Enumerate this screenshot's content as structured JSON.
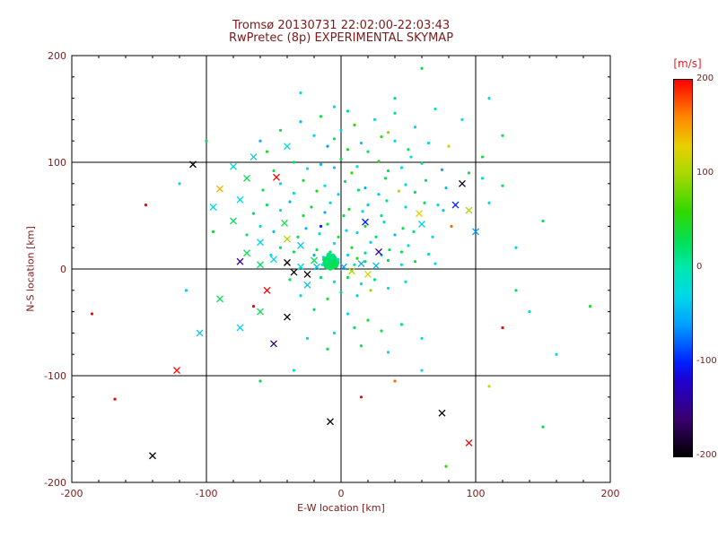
{
  "figure": {
    "background": "#ffffff",
    "text_color": "#7a1a1a",
    "axis_color": "#000000",
    "unit_label_color": "#e32222"
  },
  "chart_data": {
    "type": "scatter",
    "title_line1": "Tromsø 20130731 22:02:00-22:03:43",
    "title_line2": "RwPretec (8p) EXPERIMENTAL SKYMAP",
    "xlabel": "E-W location [km]",
    "ylabel": "N-S location [km]",
    "xlim": [
      -200,
      200
    ],
    "ylim": [
      -200,
      200
    ],
    "x_ticks": [
      -200,
      -100,
      0,
      100,
      200
    ],
    "y_ticks": [
      -200,
      -100,
      0,
      100,
      200
    ],
    "grid_values": [
      -100,
      0,
      100
    ],
    "grid": true,
    "colorbar": {
      "unit_label": "[m/s]",
      "ticks": [
        200,
        100,
        0,
        -100,
        -200
      ],
      "min": -200,
      "max": 200
    },
    "colormap_stops": [
      {
        "v": -200,
        "c": "#000000"
      },
      {
        "v": -160,
        "c": "#3a006f"
      },
      {
        "v": -120,
        "c": "#2000d0"
      },
      {
        "v": -100,
        "c": "#0020ff"
      },
      {
        "v": -60,
        "c": "#00a0ff"
      },
      {
        "v": -30,
        "c": "#00d8e8"
      },
      {
        "v": 0,
        "c": "#00e8b0"
      },
      {
        "v": 25,
        "c": "#00e060"
      },
      {
        "v": 60,
        "c": "#30d800"
      },
      {
        "v": 100,
        "c": "#a8d800"
      },
      {
        "v": 130,
        "c": "#e8d000"
      },
      {
        "v": 160,
        "c": "#ff8800"
      },
      {
        "v": 200,
        "c": "#ff0000"
      }
    ],
    "points": [
      [
        -10,
        6,
        20,
        2
      ],
      [
        -8,
        5,
        28,
        2
      ],
      [
        -6,
        7,
        15,
        2
      ],
      [
        -9,
        3,
        32,
        2
      ],
      [
        -7,
        9,
        12,
        2
      ],
      [
        -11,
        8,
        22,
        2
      ],
      [
        -5,
        4,
        18,
        2
      ],
      [
        -8,
        11,
        26,
        2
      ],
      [
        -12,
        5,
        14,
        2
      ],
      [
        -6,
        2,
        34,
        2
      ],
      [
        -4,
        8,
        20,
        2
      ],
      [
        -10,
        10,
        16,
        2
      ],
      [
        -7,
        6,
        24,
        2
      ],
      [
        -9,
        8,
        30,
        2
      ],
      [
        -5,
        10,
        14,
        2
      ],
      [
        -11,
        3,
        26,
        2
      ],
      [
        -3,
        6,
        20,
        2
      ],
      [
        -8,
        1,
        32,
        2
      ],
      [
        -6,
        12,
        18,
        2
      ],
      [
        -12,
        9,
        22,
        2
      ],
      [
        -4,
        3,
        28,
        2
      ],
      [
        -9,
        13,
        15,
        2
      ],
      [
        -7,
        4,
        40,
        2
      ],
      [
        -10,
        2,
        20,
        2
      ],
      [
        -5,
        7,
        25,
        2
      ],
      [
        -8,
        7,
        22,
        2
      ],
      [
        -9,
        5,
        18,
        2
      ],
      [
        -6,
        5,
        30,
        2
      ],
      [
        -7,
        11,
        16,
        2
      ],
      [
        -11,
        6,
        24,
        2
      ],
      [
        60,
        188,
        30,
        0
      ],
      [
        -30,
        165,
        -25,
        0
      ],
      [
        40,
        160,
        20,
        0
      ],
      [
        110,
        160,
        -30,
        0
      ],
      [
        -5,
        152,
        -30,
        0
      ],
      [
        5,
        148,
        20,
        0
      ],
      [
        -15,
        143,
        40,
        0
      ],
      [
        25,
        140,
        -20,
        0
      ],
      [
        40,
        146,
        15,
        0
      ],
      [
        -30,
        138,
        -45,
        0
      ],
      [
        10,
        135,
        60,
        0
      ],
      [
        55,
        133,
        -25,
        0
      ],
      [
        -45,
        130,
        30,
        0
      ],
      [
        70,
        150,
        -15,
        0
      ],
      [
        35,
        128,
        90,
        0
      ],
      [
        0,
        130,
        -35,
        0
      ],
      [
        90,
        140,
        -25,
        0
      ],
      [
        120,
        125,
        30,
        0
      ],
      [
        -20,
        125,
        -30,
        0
      ],
      [
        -5,
        122,
        25,
        0
      ],
      [
        15,
        118,
        -40,
        0
      ],
      [
        30,
        124,
        50,
        0
      ],
      [
        -40,
        115,
        -20,
        1
      ],
      [
        50,
        112,
        30,
        0
      ],
      [
        -60,
        120,
        -50,
        0
      ],
      [
        65,
        118,
        -30,
        0
      ],
      [
        5,
        112,
        45,
        0
      ],
      [
        -10,
        115,
        -60,
        0
      ],
      [
        20,
        110,
        20,
        0
      ],
      [
        80,
        115,
        120,
        0
      ],
      [
        -55,
        110,
        40,
        0
      ],
      [
        40,
        120,
        -25,
        0
      ],
      [
        -100,
        120,
        25,
        0
      ],
      [
        105,
        105,
        40,
        0
      ],
      [
        -65,
        105,
        -35,
        1
      ],
      [
        -35,
        100,
        25,
        0
      ],
      [
        -15,
        98,
        -45,
        0
      ],
      [
        0,
        103,
        30,
        0
      ],
      [
        12,
        96,
        -20,
        0
      ],
      [
        28,
        101,
        55,
        0
      ],
      [
        45,
        95,
        -30,
        0
      ],
      [
        60,
        99,
        20,
        0
      ],
      [
        75,
        93,
        -55,
        0
      ],
      [
        -50,
        92,
        35,
        0
      ],
      [
        -25,
        94,
        -25,
        0
      ],
      [
        8,
        90,
        60,
        0
      ],
      [
        -5,
        95,
        -40,
        0
      ],
      [
        35,
        92,
        25,
        0
      ],
      [
        -80,
        96,
        -30,
        1
      ],
      [
        -110,
        98,
        -200,
        1
      ],
      [
        95,
        90,
        40,
        0
      ],
      [
        52,
        105,
        -20,
        0
      ],
      [
        -70,
        85,
        30,
        1
      ],
      [
        -45,
        80,
        -35,
        0
      ],
      [
        -28,
        83,
        45,
        0
      ],
      [
        -12,
        78,
        -25,
        0
      ],
      [
        3,
        82,
        20,
        0
      ],
      [
        18,
        76,
        -50,
        0
      ],
      [
        33,
        85,
        35,
        0
      ],
      [
        48,
        79,
        -30,
        0
      ],
      [
        63,
        83,
        25,
        0
      ],
      [
        78,
        76,
        -45,
        0
      ],
      [
        -58,
        74,
        30,
        0
      ],
      [
        -35,
        71,
        -20,
        0
      ],
      [
        -18,
        73,
        50,
        0
      ],
      [
        -2,
        70,
        -30,
        0
      ],
      [
        13,
        74,
        25,
        0
      ],
      [
        28,
        70,
        -40,
        0
      ],
      [
        55,
        72,
        30,
        0
      ],
      [
        90,
        80,
        -190,
        1
      ],
      [
        105,
        85,
        -25,
        0
      ],
      [
        120,
        78,
        30,
        0
      ],
      [
        43,
        73,
        110,
        0
      ],
      [
        -90,
        75,
        140,
        1
      ],
      [
        -48,
        86,
        200,
        1
      ],
      [
        -120,
        80,
        -30,
        0
      ],
      [
        -75,
        65,
        -30,
        1
      ],
      [
        -55,
        60,
        25,
        0
      ],
      [
        -38,
        63,
        -45,
        0
      ],
      [
        -22,
        58,
        35,
        0
      ],
      [
        -8,
        62,
        -20,
        0
      ],
      [
        6,
        56,
        45,
        0
      ],
      [
        20,
        60,
        -35,
        0
      ],
      [
        34,
        64,
        20,
        0
      ],
      [
        48,
        58,
        -25,
        0
      ],
      [
        62,
        62,
        30,
        0
      ],
      [
        76,
        55,
        -40,
        0
      ],
      [
        -65,
        52,
        25,
        0
      ],
      [
        -45,
        55,
        -30,
        0
      ],
      [
        -28,
        50,
        40,
        0
      ],
      [
        -12,
        53,
        -55,
        0
      ],
      [
        2,
        50,
        30,
        0
      ],
      [
        16,
        54,
        -25,
        0
      ],
      [
        30,
        50,
        20,
        0
      ],
      [
        58,
        52,
        130,
        1
      ],
      [
        72,
        60,
        -20,
        0
      ],
      [
        95,
        55,
        100,
        1
      ],
      [
        110,
        62,
        -30,
        0
      ],
      [
        -95,
        58,
        -25,
        1
      ],
      [
        85,
        60,
        -100,
        1
      ],
      [
        150,
        45,
        25,
        0
      ],
      [
        -145,
        60,
        200,
        0
      ],
      [
        -80,
        45,
        30,
        1
      ],
      [
        -60,
        40,
        -25,
        0
      ],
      [
        -42,
        43,
        35,
        1
      ],
      [
        -26,
        38,
        -45,
        0
      ],
      [
        -10,
        42,
        25,
        0
      ],
      [
        4,
        36,
        -30,
        0
      ],
      [
        18,
        40,
        45,
        0
      ],
      [
        32,
        44,
        -20,
        0
      ],
      [
        46,
        38,
        30,
        0
      ],
      [
        60,
        42,
        -35,
        1
      ],
      [
        -70,
        32,
        20,
        0
      ],
      [
        -50,
        35,
        -40,
        0
      ],
      [
        -32,
        30,
        30,
        0
      ],
      [
        -16,
        33,
        -25,
        0
      ],
      [
        -2,
        30,
        40,
        0
      ],
      [
        12,
        34,
        -30,
        0
      ],
      [
        26,
        30,
        25,
        0
      ],
      [
        40,
        32,
        -45,
        0
      ],
      [
        54,
        35,
        20,
        0
      ],
      [
        68,
        30,
        -25,
        0
      ],
      [
        82,
        40,
        170,
        0
      ],
      [
        100,
        35,
        -60,
        1
      ],
      [
        -40,
        28,
        100,
        1
      ],
      [
        18,
        44,
        -100,
        1
      ],
      [
        -15,
        40,
        -100,
        0
      ],
      [
        -95,
        35,
        40,
        0
      ],
      [
        -60,
        25,
        -30,
        1
      ],
      [
        -45,
        20,
        25,
        0
      ],
      [
        -30,
        22,
        -40,
        1
      ],
      [
        -18,
        18,
        30,
        0
      ],
      [
        -5,
        24,
        -25,
        0
      ],
      [
        8,
        20,
        40,
        0
      ],
      [
        22,
        25,
        -35,
        0
      ],
      [
        36,
        18,
        25,
        0
      ],
      [
        50,
        22,
        -20,
        0
      ],
      [
        -70,
        15,
        30,
        1
      ],
      [
        -52,
        13,
        -25,
        0
      ],
      [
        -35,
        16,
        35,
        0
      ],
      [
        -20,
        13,
        -50,
        0
      ],
      [
        -8,
        16,
        25,
        0
      ],
      [
        5,
        13,
        -30,
        0
      ],
      [
        18,
        15,
        20,
        0
      ],
      [
        30,
        13,
        -40,
        0
      ],
      [
        45,
        16,
        30,
        0
      ],
      [
        65,
        14,
        -25,
        0
      ],
      [
        28,
        16,
        -150,
        1
      ],
      [
        130,
        20,
        -30,
        0
      ],
      [
        10,
        4,
        -30,
        0
      ],
      [
        18,
        7,
        25,
        0
      ],
      [
        26,
        3,
        -45,
        1
      ],
      [
        35,
        8,
        30,
        0
      ],
      [
        45,
        4,
        -20,
        0
      ],
      [
        55,
        7,
        40,
        0
      ],
      [
        -40,
        6,
        -200,
        1
      ],
      [
        -50,
        9,
        -30,
        1
      ],
      [
        -60,
        4,
        25,
        1
      ],
      [
        -75,
        7,
        -150,
        1
      ],
      [
        12,
        10,
        60,
        0
      ],
      [
        70,
        5,
        -30,
        0
      ],
      [
        -18,
        2,
        -40,
        1
      ],
      [
        -20,
        8,
        30,
        1
      ],
      [
        2,
        2,
        -60,
        1
      ],
      [
        8,
        -2,
        100,
        1
      ],
      [
        -25,
        -5,
        -200,
        1
      ],
      [
        -30,
        2,
        -30,
        1
      ],
      [
        -35,
        -3,
        -200,
        1
      ],
      [
        15,
        5,
        -50,
        1
      ],
      [
        20,
        -5,
        120,
        1
      ],
      [
        -14,
        4,
        -20,
        0
      ],
      [
        -2,
        9,
        -15,
        0
      ],
      [
        -13,
        11,
        -25,
        0
      ],
      [
        -15,
        -8,
        25,
        0
      ],
      [
        -5,
        -12,
        -30,
        0
      ],
      [
        5,
        -8,
        35,
        0
      ],
      [
        15,
        -14,
        -25,
        0
      ],
      [
        25,
        -10,
        20,
        0
      ],
      [
        -25,
        -15,
        -40,
        1
      ],
      [
        -38,
        -10,
        30,
        0
      ],
      [
        35,
        -18,
        -30,
        0
      ],
      [
        0,
        -22,
        25,
        0
      ],
      [
        12,
        -25,
        -35,
        0
      ],
      [
        -10,
        -28,
        40,
        0
      ],
      [
        48,
        -12,
        -20,
        0
      ],
      [
        -55,
        -20,
        200,
        1
      ],
      [
        22,
        -20,
        90,
        0
      ],
      [
        -30,
        -25,
        -25,
        0
      ],
      [
        -115,
        -20,
        -35,
        0
      ],
      [
        130,
        -20,
        25,
        0
      ],
      [
        -20,
        -38,
        25,
        0
      ],
      [
        5,
        -42,
        -30,
        0
      ],
      [
        20,
        -48,
        35,
        0
      ],
      [
        -40,
        -45,
        -200,
        1
      ],
      [
        -60,
        -40,
        30,
        1
      ],
      [
        -75,
        -55,
        -35,
        1
      ],
      [
        10,
        -55,
        25,
        0
      ],
      [
        -5,
        -60,
        -25,
        0
      ],
      [
        30,
        -58,
        40,
        0
      ],
      [
        -25,
        -65,
        -30,
        0
      ],
      [
        45,
        -52,
        20,
        0
      ],
      [
        -50,
        -70,
        -150,
        1
      ],
      [
        15,
        -72,
        30,
        0
      ],
      [
        -65,
        -35,
        200,
        0
      ],
      [
        60,
        -65,
        -25,
        0
      ],
      [
        -10,
        -75,
        35,
        0
      ],
      [
        35,
        -78,
        -30,
        0
      ],
      [
        120,
        -55,
        200,
        0
      ],
      [
        140,
        -40,
        -30,
        0
      ],
      [
        -185,
        -42,
        200,
        0
      ],
      [
        -105,
        -60,
        -40,
        1
      ],
      [
        160,
        -80,
        -30,
        0
      ],
      [
        185,
        -35,
        40,
        0
      ],
      [
        -140,
        -175,
        -200,
        1
      ],
      [
        -122,
        -95,
        200,
        1
      ],
      [
        -168,
        -122,
        200,
        0
      ],
      [
        -8,
        -143,
        -200,
        1
      ],
      [
        15,
        -120,
        200,
        0
      ],
      [
        75,
        -135,
        -200,
        1
      ],
      [
        95,
        -163,
        200,
        1
      ],
      [
        110,
        -110,
        120,
        0
      ],
      [
        78,
        -185,
        60,
        0
      ],
      [
        150,
        -148,
        30,
        0
      ],
      [
        60,
        -95,
        -30,
        0
      ],
      [
        40,
        -105,
        170,
        0
      ],
      [
        -35,
        -95,
        -25,
        0
      ],
      [
        -60,
        -105,
        30,
        0
      ],
      [
        -90,
        -28,
        30,
        1
      ]
    ]
  }
}
